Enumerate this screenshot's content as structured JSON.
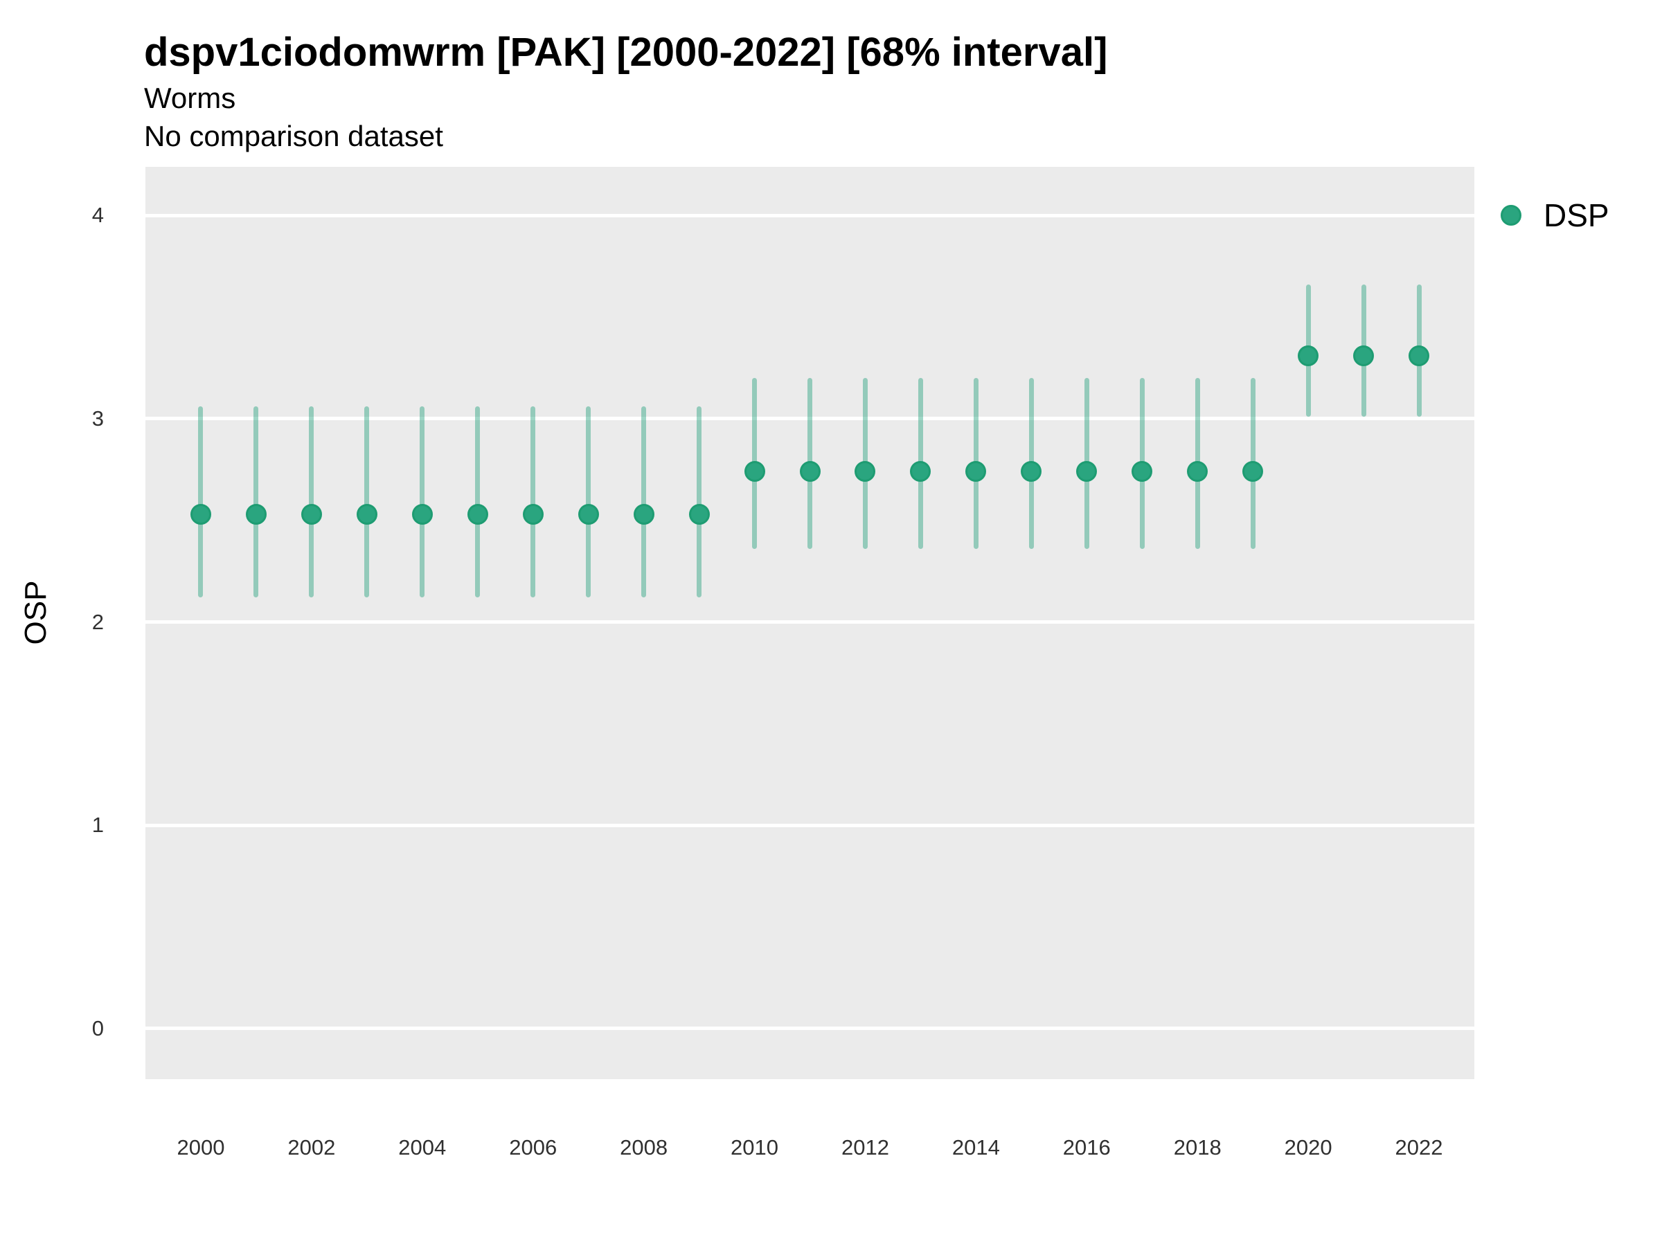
{
  "title": "dspv1ciodomwrm [PAK] [2000-2022] [68% interval]",
  "subtitle": "Worms",
  "comparison_note": "No comparison dataset",
  "legend": {
    "items": [
      {
        "label": "DSP",
        "color": "#2aa57f"
      }
    ]
  },
  "colors": {
    "point_fill": "#2aa57f",
    "point_border": "#1e9c72",
    "interval_bar": "rgba(27,158,119,0.42)",
    "panel_background": "#ebebeb",
    "gridline": "#ffffff"
  },
  "y_axis": {
    "label": "OSP"
  },
  "chart_data": {
    "type": "scatter",
    "title": "dspv1ciodomwrm [PAK] [2000-2022] [68% interval]",
    "subtitle": "Worms",
    "note": "No comparison dataset",
    "interval": "68%",
    "xlabel": "",
    "ylabel": "OSP",
    "xlim": [
      1999,
      2023
    ],
    "ylim": [
      -0.25,
      4.24
    ],
    "x_ticks": [
      2000,
      2002,
      2004,
      2006,
      2008,
      2010,
      2012,
      2014,
      2016,
      2018,
      2020,
      2022
    ],
    "y_ticks": [
      0,
      1,
      2,
      3,
      4
    ],
    "grid": "major-horizontal-white",
    "legend_position": "right-top",
    "series": [
      {
        "name": "DSP",
        "x": [
          2000,
          2001,
          2002,
          2003,
          2004,
          2005,
          2006,
          2007,
          2008,
          2009,
          2010,
          2011,
          2012,
          2013,
          2014,
          2015,
          2016,
          2017,
          2018,
          2019,
          2020,
          2021,
          2022
        ],
        "y": [
          2.53,
          2.53,
          2.53,
          2.53,
          2.53,
          2.53,
          2.53,
          2.53,
          2.53,
          2.53,
          2.74,
          2.74,
          2.74,
          2.74,
          2.74,
          2.74,
          2.74,
          2.74,
          2.74,
          2.74,
          3.31,
          3.31,
          3.31
        ],
        "lower": [
          2.12,
          2.12,
          2.12,
          2.12,
          2.12,
          2.12,
          2.12,
          2.12,
          2.12,
          2.12,
          2.36,
          2.36,
          2.36,
          2.36,
          2.36,
          2.36,
          2.36,
          2.36,
          2.36,
          2.36,
          3.01,
          3.01,
          3.01
        ],
        "upper": [
          3.06,
          3.06,
          3.06,
          3.06,
          3.06,
          3.06,
          3.06,
          3.06,
          3.06,
          3.06,
          3.2,
          3.2,
          3.2,
          3.2,
          3.2,
          3.2,
          3.2,
          3.2,
          3.2,
          3.2,
          3.66,
          3.66,
          3.66
        ]
      }
    ]
  }
}
